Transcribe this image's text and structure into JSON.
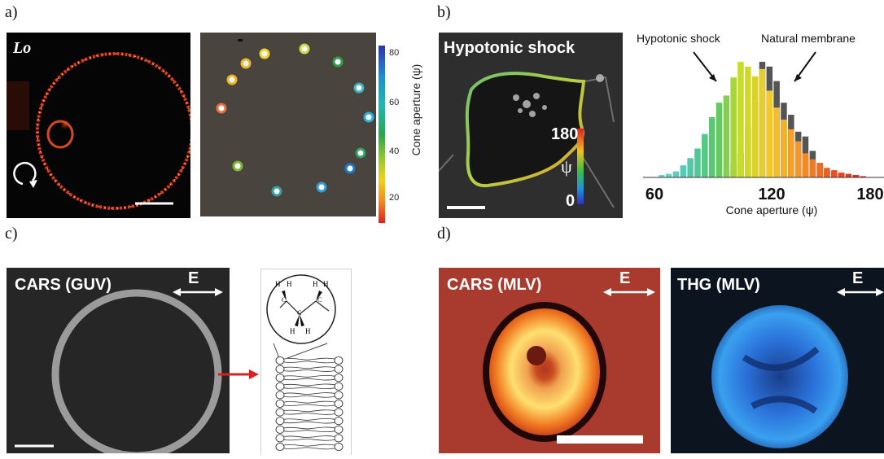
{
  "panels": {
    "a": {
      "label": "a)",
      "inset_text": "Lo",
      "colorbar": {
        "label": "Cone aperture (ψ)",
        "ticks": [
          "20",
          "40",
          "60",
          "80"
        ]
      }
    },
    "b": {
      "label": "b)",
      "title": "Hypotonic shock",
      "colorbar_top": "180",
      "colorbar_mid": "ψ",
      "colorbar_bottom": "0",
      "legend_left": "Hypotonic shock",
      "legend_right": "Natural membrane"
    },
    "c": {
      "label": "c)",
      "title": "CARS (GUV)",
      "polarization": "E",
      "molecule": {
        "h": "H",
        "c": "C"
      }
    },
    "d": {
      "label": "d)",
      "title_left": "CARS (MLV)",
      "title_right": "THG (MLV)",
      "polarization": "E"
    }
  },
  "chart_data": {
    "type": "bar",
    "xlabel": "Cone aperture (ψ)",
    "ylabel": "",
    "x_ticks": [
      "60",
      "120",
      "180"
    ],
    "xlim": [
      52,
      182
    ],
    "series": [
      {
        "name": "Natural membrane",
        "color": "#555555",
        "x": [
          100,
          104,
          108,
          112,
          116,
          120,
          124,
          128,
          132,
          136,
          140,
          144,
          148,
          152,
          156,
          160,
          164,
          168,
          172
        ],
        "values": [
          0.05,
          0.12,
          0.2,
          0.42,
          0.62,
          0.96,
          0.92,
          0.8,
          0.62,
          0.52,
          0.38,
          0.34,
          0.22,
          0.12,
          0.06,
          0.04,
          0.025,
          0.015,
          0.008
        ]
      },
      {
        "name": "Hypotonic shock",
        "color": "#66cc66",
        "x": [
          64,
          68,
          72,
          76,
          80,
          84,
          88,
          92,
          96,
          100,
          104,
          108,
          112,
          116,
          120,
          124,
          128,
          132,
          136,
          140,
          144,
          148,
          152,
          156,
          160,
          164,
          168,
          172,
          176
        ],
        "values": [
          0.02,
          0.03,
          0.05,
          0.1,
          0.16,
          0.24,
          0.36,
          0.5,
          0.62,
          0.68,
          0.83,
          0.96,
          0.92,
          0.84,
          0.9,
          0.72,
          0.58,
          0.48,
          0.4,
          0.3,
          0.2,
          0.15,
          0.12,
          0.08,
          0.06,
          0.04,
          0.03,
          0.02,
          0.01
        ]
      }
    ]
  }
}
